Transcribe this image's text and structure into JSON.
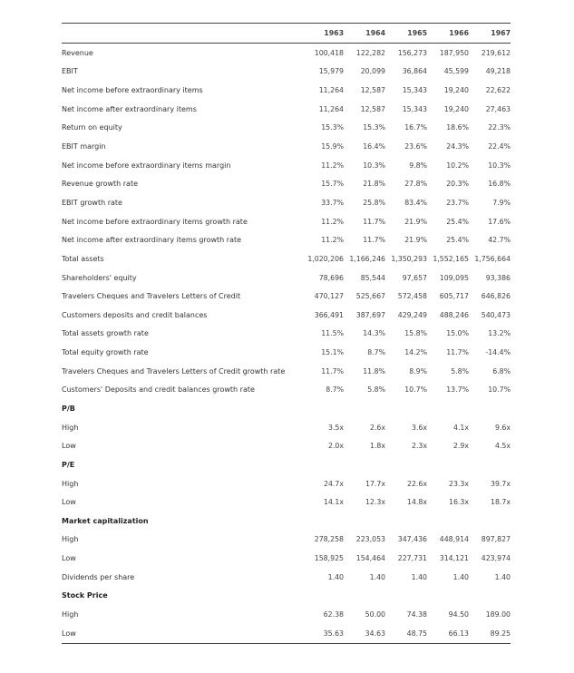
{
  "table": {
    "years": [
      "1963",
      "1964",
      "1965",
      "1966",
      "1967"
    ],
    "rows": [
      {
        "label": "Revenue",
        "values": [
          "100,418",
          "122,282",
          "156,273",
          "187,950",
          "219,612"
        ]
      },
      {
        "label": "EBIT",
        "values": [
          "15,979",
          "20,099",
          "36,864",
          "45,599",
          "49,218"
        ]
      },
      {
        "label": "Net income before extraordinary items",
        "values": [
          "11,264",
          "12,587",
          "15,343",
          "19,240",
          "22,622"
        ]
      },
      {
        "label": "Net income after extraordinary items",
        "values": [
          "11,264",
          "12,587",
          "15,343",
          "19,240",
          "27,463"
        ]
      },
      {
        "label": "Return on equity",
        "values": [
          "15.3%",
          "15.3%",
          "16.7%",
          "18.6%",
          "22.3%"
        ]
      },
      {
        "label": "EBIT margin",
        "values": [
          "15.9%",
          "16.4%",
          "23.6%",
          "24.3%",
          "22.4%"
        ]
      },
      {
        "label": "Net income before extraordinary items margin",
        "values": [
          "11.2%",
          "10.3%",
          "9.8%",
          "10.2%",
          "10.3%"
        ]
      },
      {
        "label": "Revenue growth rate",
        "values": [
          "15.7%",
          "21.8%",
          "27.8%",
          "20.3%",
          "16.8%"
        ]
      },
      {
        "label": "EBIT growth rate",
        "values": [
          "33.7%",
          "25.8%",
          "83.4%",
          "23.7%",
          "7.9%"
        ]
      },
      {
        "label": "Net income before extraordinary items growth rate",
        "values": [
          "11.2%",
          "11.7%",
          "21.9%",
          "25.4%",
          "17.6%"
        ]
      },
      {
        "label": "Net income after extraordinary items growth rate",
        "values": [
          "11.2%",
          "11.7%",
          "21.9%",
          "25.4%",
          "42.7%"
        ]
      },
      {
        "label": "Total assets",
        "values": [
          "1,020,206",
          "1,166,246",
          "1,350,293",
          "1,552,165",
          "1,756,664"
        ]
      },
      {
        "label": "Shareholders' equity",
        "values": [
          "78,696",
          "85,544",
          "97,657",
          "109,095",
          "93,386"
        ]
      },
      {
        "label": "Travelers Cheques and Travelers Letters of Credit",
        "values": [
          "470,127",
          "525,667",
          "572,458",
          "605,717",
          "646,826"
        ]
      },
      {
        "label": "Customers deposits and credit balances",
        "values": [
          "366,491",
          "387,697",
          "429,249",
          "488,246",
          "540,473"
        ]
      },
      {
        "label": "Total assets growth rate",
        "values": [
          "11.5%",
          "14.3%",
          "15.8%",
          "15.0%",
          "13.2%"
        ]
      },
      {
        "label": "Total equity growth rate",
        "values": [
          "15.1%",
          "8.7%",
          "14.2%",
          "11.7%",
          "-14.4%"
        ]
      },
      {
        "label": "Travelers Cheques and Travelers Letters of Credit growth rate",
        "values": [
          "11.7%",
          "11.8%",
          "8.9%",
          "5.8%",
          "6.8%"
        ]
      },
      {
        "label": "Customers' Deposits and credit balances growth rate",
        "values": [
          "8.7%",
          "5.8%",
          "10.7%",
          "13.7%",
          "10.7%"
        ]
      },
      {
        "label": "P/B",
        "section": true,
        "values": [
          "",
          "",
          "",
          "",
          ""
        ]
      },
      {
        "label": "High",
        "values": [
          "3.5x",
          "2.6x",
          "3.6x",
          "4.1x",
          "9.6x"
        ]
      },
      {
        "label": "Low",
        "values": [
          "2.0x",
          "1.8x",
          "2.3x",
          "2.9x",
          "4.5x"
        ]
      },
      {
        "label": "P/E",
        "section": true,
        "values": [
          "",
          "",
          "",
          "",
          ""
        ]
      },
      {
        "label": "High",
        "values": [
          "24.7x",
          "17.7x",
          "22.6x",
          "23.3x",
          "39.7x"
        ]
      },
      {
        "label": "Low",
        "values": [
          "14.1x",
          "12.3x",
          "14.8x",
          "16.3x",
          "18.7x"
        ]
      },
      {
        "label": "Market capitalization",
        "section": true,
        "values": [
          "",
          "",
          "",
          "",
          ""
        ]
      },
      {
        "label": "High",
        "values": [
          "278,258",
          "223,053",
          "347,436",
          "448,914",
          "897,827"
        ]
      },
      {
        "label": "Low",
        "values": [
          "158,925",
          "154,464",
          "227,731",
          "314,121",
          "423,974"
        ]
      },
      {
        "label": "Dividends per share",
        "values": [
          "1.40",
          "1.40",
          "1.40",
          "1.40",
          "1.40"
        ]
      },
      {
        "label": "Stock Price",
        "section": true,
        "values": [
          "",
          "",
          "",
          "",
          ""
        ]
      },
      {
        "label": "High",
        "values": [
          "62.38",
          "50.00",
          "74.38",
          "94.50",
          "189.00"
        ]
      },
      {
        "label": "Low",
        "values": [
          "35.63",
          "34.63",
          "48.75",
          "66.13",
          "89.25"
        ]
      }
    ]
  }
}
